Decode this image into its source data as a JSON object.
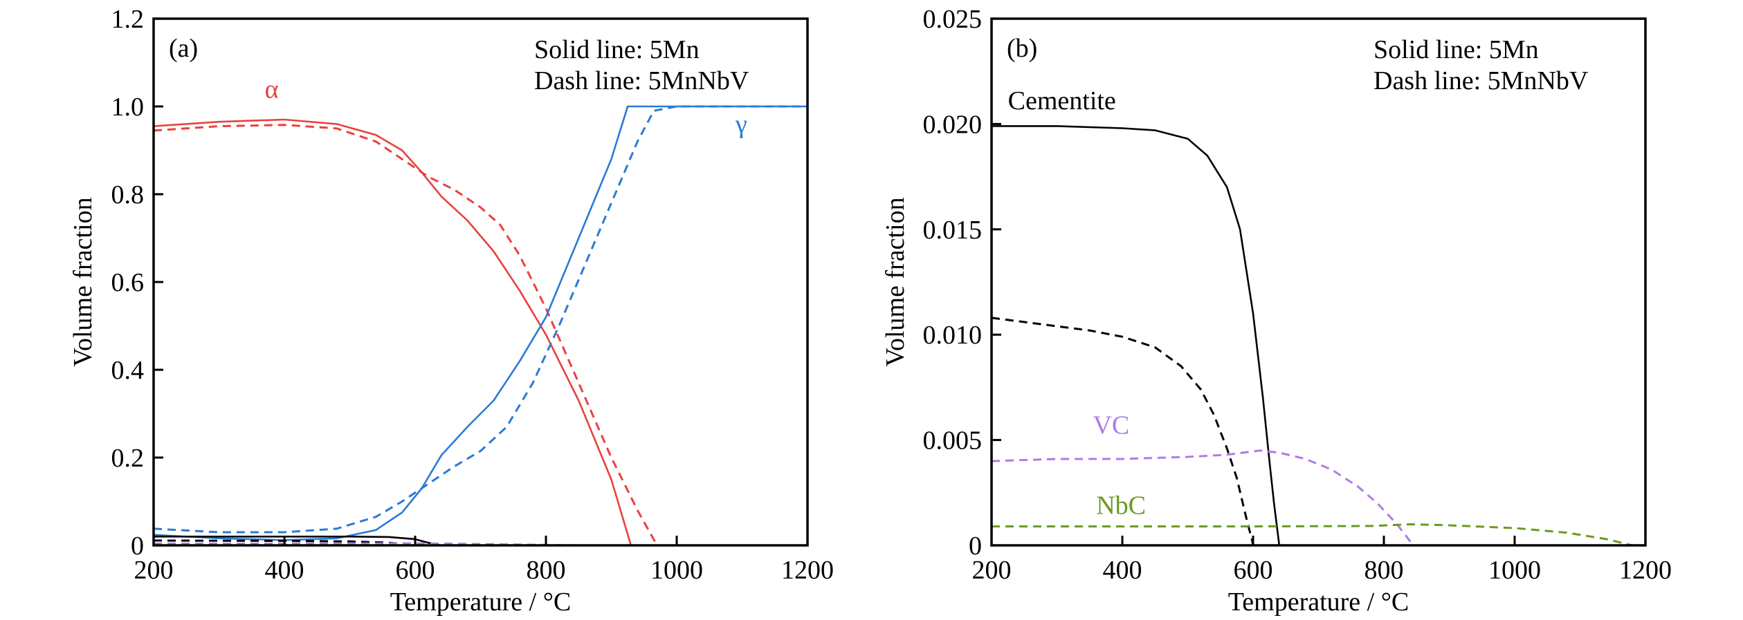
{
  "chart_data": [
    {
      "type": "line",
      "panel_label": "(a)",
      "xlabel": "Temperature / °C",
      "ylabel": "Volume fraction",
      "xlim": [
        200,
        1200
      ],
      "ylim": [
        0,
        1.2
      ],
      "xticks": [
        200,
        400,
        600,
        800,
        1000,
        1200
      ],
      "xtick_labels": [
        "200",
        "400",
        "600",
        "800",
        "1000",
        "1200"
      ],
      "yticks": [
        0,
        0.2,
        0.4,
        0.6,
        0.8,
        1.0,
        1.2
      ],
      "ytick_labels": [
        "0",
        "0.2",
        "0.4",
        "0.6",
        "0.8",
        "1.0",
        "1.2"
      ],
      "grid": false,
      "notes": [
        "Solid line: 5Mn",
        "Dash line: 5MnNbV"
      ],
      "annotations": [
        {
          "text": "α",
          "x": 370,
          "y": 1.02,
          "color": "#e8413e"
        },
        {
          "text": "γ",
          "x": 1090,
          "y": 0.94,
          "color": "#2a7ad4"
        }
      ],
      "series": [
        {
          "name": "α (5Mn)",
          "color": "#e8413e",
          "dash": false,
          "x": [
            200,
            300,
            400,
            480,
            540,
            580,
            610,
            640,
            680,
            720,
            760,
            800,
            850,
            900,
            930
          ],
          "y": [
            0.955,
            0.965,
            0.97,
            0.96,
            0.935,
            0.9,
            0.85,
            0.795,
            0.74,
            0.67,
            0.58,
            0.48,
            0.33,
            0.15,
            0.0
          ]
        },
        {
          "name": "α (5MnNbV)",
          "color": "#e8413e",
          "dash": true,
          "x": [
            200,
            300,
            400,
            480,
            540,
            580,
            620,
            660,
            700,
            730,
            760,
            800,
            850,
            900,
            940,
            970
          ],
          "y": [
            0.945,
            0.955,
            0.958,
            0.95,
            0.92,
            0.88,
            0.84,
            0.81,
            0.77,
            0.73,
            0.66,
            0.54,
            0.37,
            0.2,
            0.08,
            0.0
          ]
        },
        {
          "name": "γ (5Mn)",
          "color": "#2a7ad4",
          "dash": false,
          "x": [
            200,
            300,
            400,
            480,
            540,
            580,
            610,
            640,
            680,
            720,
            760,
            800,
            850,
            900,
            925,
            1000,
            1200
          ],
          "y": [
            0.024,
            0.016,
            0.012,
            0.016,
            0.035,
            0.075,
            0.13,
            0.205,
            0.27,
            0.33,
            0.42,
            0.52,
            0.7,
            0.88,
            1.0,
            1.0,
            1.0
          ]
        },
        {
          "name": "γ (5MnNbV)",
          "color": "#2a7ad4",
          "dash": true,
          "x": [
            200,
            300,
            400,
            480,
            540,
            580,
            620,
            660,
            700,
            740,
            780,
            820,
            860,
            900,
            940,
            965,
            1000,
            1200
          ],
          "y": [
            0.038,
            0.03,
            0.03,
            0.038,
            0.065,
            0.1,
            0.14,
            0.18,
            0.215,
            0.27,
            0.37,
            0.5,
            0.64,
            0.78,
            0.92,
            0.99,
            1.0,
            1.0
          ]
        },
        {
          "name": "Cementite (5Mn)",
          "color": "#000000",
          "dash": false,
          "x": [
            200,
            300,
            400,
            500,
            560,
            600,
            620,
            640
          ],
          "y": [
            0.02,
            0.02,
            0.02,
            0.02,
            0.019,
            0.014,
            0.006,
            0.0
          ]
        },
        {
          "name": "Cementite (5MnNbV)",
          "color": "#000000",
          "dash": true,
          "x": [
            200,
            300,
            400,
            500,
            560,
            590,
            600
          ],
          "y": [
            0.011,
            0.0105,
            0.0102,
            0.009,
            0.006,
            0.002,
            0.0
          ]
        },
        {
          "name": "VC (5MnNbV)",
          "color": "#b07ae8",
          "dash": true,
          "x": [
            200,
            400,
            600,
            700,
            850,
            1200
          ],
          "y": [
            0.004,
            0.004,
            0.0045,
            0.003,
            0.0,
            0.0
          ]
        }
      ]
    },
    {
      "type": "line",
      "panel_label": "(b)",
      "xlabel": "Temperature / °C",
      "ylabel": "Volume fraction",
      "xlim": [
        200,
        1200
      ],
      "ylim": [
        0,
        0.025
      ],
      "xticks": [
        200,
        400,
        600,
        800,
        1000,
        1200
      ],
      "xtick_labels": [
        "200",
        "400",
        "600",
        "800",
        "1000",
        "1200"
      ],
      "yticks": [
        0,
        0.005,
        0.01,
        0.015,
        0.02,
        0.025
      ],
      "ytick_labels": [
        "0",
        "0.005",
        "0.010",
        "0.015",
        "0.020",
        "0.025"
      ],
      "grid": false,
      "notes": [
        "Solid line: 5Mn",
        "Dash line: 5MnNbV"
      ],
      "annotations": [
        {
          "text": "Cementite",
          "x": 225,
          "y": 0.0207,
          "color": "#000000"
        },
        {
          "text": "VC",
          "x": 355,
          "y": 0.0053,
          "color": "#b07ae8"
        },
        {
          "text": "NbC",
          "x": 360,
          "y": 0.0015,
          "color": "#6a9a1f"
        }
      ],
      "series": [
        {
          "name": "Cementite (5Mn)",
          "color": "#000000",
          "dash": false,
          "x": [
            200,
            300,
            400,
            450,
            500,
            530,
            560,
            580,
            600,
            615,
            625,
            632,
            640
          ],
          "y": [
            0.0199,
            0.0199,
            0.0198,
            0.0197,
            0.0193,
            0.0185,
            0.017,
            0.015,
            0.011,
            0.007,
            0.004,
            0.002,
            0.0
          ]
        },
        {
          "name": "Cementite (5MnNbV)",
          "color": "#000000",
          "dash": true,
          "x": [
            200,
            250,
            300,
            350,
            400,
            450,
            490,
            520,
            540,
            560,
            575,
            585,
            592,
            598,
            600
          ],
          "y": [
            0.0108,
            0.0106,
            0.0104,
            0.0102,
            0.0099,
            0.0094,
            0.0085,
            0.0074,
            0.0062,
            0.0046,
            0.0032,
            0.0019,
            0.001,
            0.0003,
            0.0
          ]
        },
        {
          "name": "VC (5MnNbV)",
          "color": "#b07ae8",
          "dash": true,
          "x": [
            200,
            300,
            400,
            500,
            560,
            610,
            640,
            680,
            720,
            760,
            790,
            820,
            845
          ],
          "y": [
            0.004,
            0.0041,
            0.0041,
            0.0042,
            0.0043,
            0.0045,
            0.0044,
            0.0041,
            0.0036,
            0.0028,
            0.002,
            0.001,
            0.0
          ]
        },
        {
          "name": "NbC (5MnNbV)",
          "color": "#6a9a1f",
          "dash": true,
          "x": [
            200,
            400,
            600,
            780,
            840,
            900,
            1000,
            1080,
            1140,
            1180
          ],
          "y": [
            0.0009,
            0.0009,
            0.0009,
            0.00092,
            0.001,
            0.00095,
            0.00082,
            0.0006,
            0.0003,
            0.0
          ]
        }
      ]
    }
  ]
}
